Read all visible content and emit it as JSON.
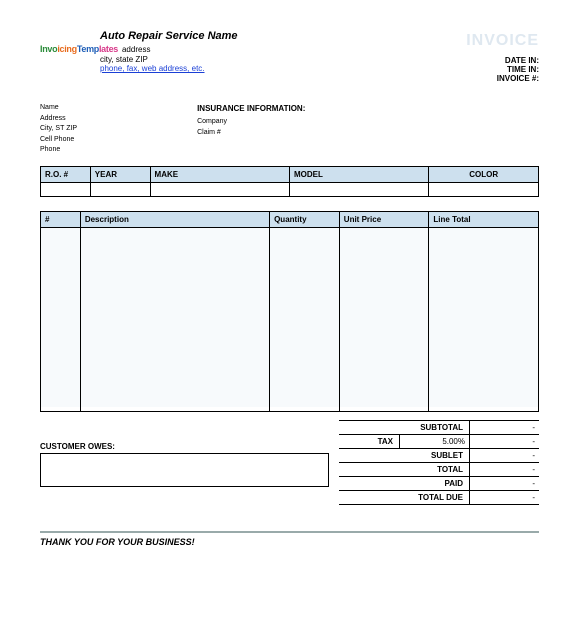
{
  "header": {
    "company_name": "Auto Repair Service Name",
    "address_line1": "address",
    "address_line2": "city, state ZIP",
    "contact_link": "phone, fax, web address, etc.",
    "invoice_word": "INVOICE",
    "date_in_label": "DATE IN:",
    "time_in_label": "TIME IN:",
    "invoice_no_label": "INVOICE #:",
    "logo_text": "InvoicingTemplates"
  },
  "customer": {
    "name_label": "Name",
    "address_label": "Address",
    "citystzip_label": "City, ST ZIP",
    "cell_label": "Cell Phone",
    "phone_label": "Phone"
  },
  "insurance": {
    "heading": "INSURANCE INFORMATION:",
    "company_label": "Company",
    "claim_label": "Claim #"
  },
  "vehicle_table": {
    "columns": [
      "R.O. #",
      "YEAR",
      "MAKE",
      "MODEL",
      "COLOR"
    ],
    "header_bg": "#cde0ee",
    "border_color": "#000000"
  },
  "items_table": {
    "columns": [
      "#",
      "Description",
      "Quantity",
      "Unit Price",
      "Line Total"
    ],
    "header_bg": "#cde0ee",
    "row_bg_alt": "#f7fafc"
  },
  "totals": {
    "subtotal_label": "SUBTOTAL",
    "tax_label": "TAX",
    "tax_value": "5.00%",
    "sublet_label": "SUBLET",
    "total_label": "TOTAL",
    "paid_label": "PAID",
    "total_due_label": "TOTAL DUE",
    "dash": "-"
  },
  "owes": {
    "label": "CUSTOMER OWES:"
  },
  "footer": {
    "thanks": "THANK YOU FOR YOUR BUSINESS!"
  },
  "colors": {
    "invoice_word": "#dfe8f0",
    "link": "#1a3fd6",
    "header_bg": "#cde0ee"
  }
}
